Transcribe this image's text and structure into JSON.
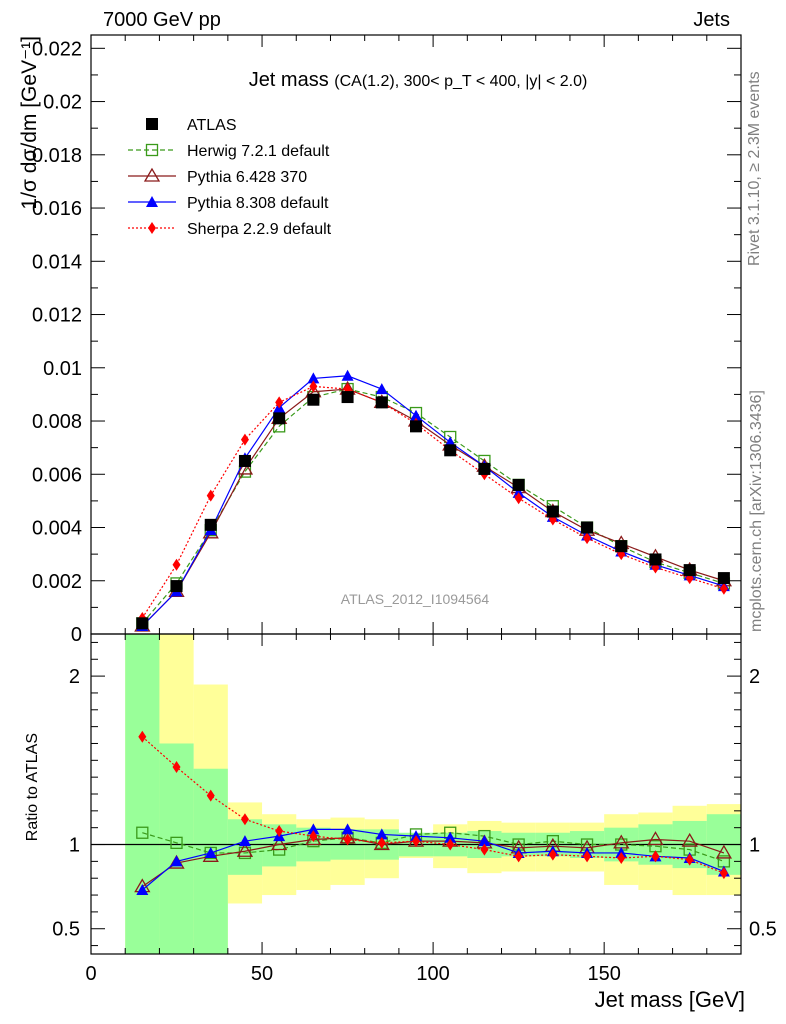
{
  "header": {
    "left": "7000 GeV pp",
    "right": "Jets"
  },
  "side_labels": {
    "rivet": "Rivet 3.1.10, ≥ 2.3M events",
    "mcplots": "mcplots.cern.ch [arXiv:1306.3436]"
  },
  "colors": {
    "ATLAS": "#000000",
    "Herwig": "#3a9a1a",
    "Pythia6": "#8b1a1a",
    "Pythia8": "#0000ff",
    "Sherpa": "#ff0000",
    "band_green": "#99ff99",
    "band_yellow": "#ffff99"
  },
  "chart_data": [
    {
      "type": "line",
      "title": "Jet mass",
      "title_detail": "(CA(1.2), 300< p_T < 400, |y| < 2.0)",
      "xlabel": "",
      "ylabel": "1/σ dσ/dm [GeV⁻¹]",
      "watermark": "ATLAS_2012_I1094564",
      "xlim": [
        0,
        190
      ],
      "ylim": [
        0,
        0.0225
      ],
      "yticks": [
        0,
        0.002,
        0.004,
        0.006,
        0.008,
        0.01,
        0.012,
        0.014,
        0.016,
        0.018,
        0.02,
        0.022
      ],
      "ytick_labels": [
        "0",
        "0.002",
        "0.004",
        "0.006",
        "0.008",
        "0.01",
        "0.012",
        "0.014",
        "0.016",
        "0.018",
        "0.02",
        "0.022"
      ],
      "legend_position": "top-left",
      "x": [
        15,
        25,
        35,
        45,
        55,
        65,
        75,
        85,
        95,
        105,
        115,
        125,
        135,
        145,
        155,
        165,
        175,
        185
      ],
      "series": [
        {
          "name": "ATLAS",
          "style": "data",
          "values": [
            0.0004,
            0.0018,
            0.0041,
            0.0065,
            0.0081,
            0.0088,
            0.0089,
            0.0087,
            0.0078,
            0.0069,
            0.0062,
            0.0056,
            0.0046,
            0.004,
            0.0033,
            0.0028,
            0.0024,
            0.0021
          ]
        },
        {
          "name": "Herwig 7.2.1 default",
          "style": "herwig",
          "values": [
            0.0004,
            0.0019,
            0.0039,
            0.0061,
            0.0078,
            0.0089,
            0.0092,
            0.0089,
            0.0083,
            0.0074,
            0.0065,
            0.0056,
            0.0048,
            0.004,
            0.0033,
            0.0027,
            0.0023,
            0.0019
          ]
        },
        {
          "name": "Pythia 6.428 370",
          "style": "pythia6",
          "values": [
            0.0003,
            0.0016,
            0.0038,
            0.0062,
            0.0081,
            0.0091,
            0.0092,
            0.0087,
            0.008,
            0.0071,
            0.0063,
            0.0055,
            0.0046,
            0.0039,
            0.0034,
            0.0029,
            0.0024,
            0.002
          ]
        },
        {
          "name": "Pythia 8.308 default",
          "style": "pythia8",
          "values": [
            0.0003,
            0.0016,
            0.0039,
            0.0066,
            0.0085,
            0.0096,
            0.0097,
            0.0092,
            0.0082,
            0.0072,
            0.0063,
            0.0053,
            0.0044,
            0.0037,
            0.0031,
            0.0026,
            0.0022,
            0.0018
          ]
        },
        {
          "name": "Sherpa 2.2.9 default",
          "style": "sherpa",
          "values": [
            0.0006,
            0.0026,
            0.0052,
            0.0073,
            0.0087,
            0.0093,
            0.0092,
            0.0087,
            0.0079,
            0.0069,
            0.006,
            0.0051,
            0.0043,
            0.0036,
            0.003,
            0.0025,
            0.0021,
            0.0017
          ]
        }
      ]
    },
    {
      "type": "line",
      "xlabel": "Jet mass [GeV]",
      "ylabel": "Ratio to ATLAS",
      "xlim": [
        0,
        190
      ],
      "ylim": [
        0.35,
        2.25
      ],
      "xticks": [
        0,
        50,
        100,
        150
      ],
      "yticks": [
        0.5,
        1,
        2
      ],
      "ytick_labels": [
        "0.5",
        "1",
        "2"
      ],
      "reference_line": 1,
      "x": [
        15,
        25,
        35,
        45,
        55,
        65,
        75,
        85,
        95,
        105,
        115,
        125,
        135,
        145,
        155,
        165,
        175,
        185
      ],
      "bin_edges": [
        10,
        20,
        30,
        40,
        50,
        60,
        70,
        80,
        90,
        100,
        110,
        120,
        130,
        140,
        150,
        160,
        170,
        180,
        190
      ],
      "bands": {
        "green": [
          [
            0.35,
            2.25
          ],
          [
            0.35,
            1.6
          ],
          [
            0.35,
            1.45
          ],
          [
            0.82,
            1.15
          ],
          [
            0.87,
            1.12
          ],
          [
            0.9,
            1.1
          ],
          [
            0.91,
            1.09
          ],
          [
            0.91,
            1.09
          ],
          [
            0.93,
            1.07
          ],
          [
            0.93,
            1.07
          ],
          [
            0.92,
            1.08
          ],
          [
            0.93,
            1.07
          ],
          [
            0.93,
            1.07
          ],
          [
            0.92,
            1.08
          ],
          [
            0.9,
            1.1
          ],
          [
            0.88,
            1.12
          ],
          [
            0.86,
            1.14
          ],
          [
            0.82,
            1.18
          ]
        ],
        "yellow": [
          [
            0.35,
            2.25
          ],
          [
            0.35,
            2.25
          ],
          [
            0.35,
            1.95
          ],
          [
            0.65,
            1.25
          ],
          [
            0.7,
            1.18
          ],
          [
            0.73,
            1.15
          ],
          [
            0.76,
            1.16
          ],
          [
            0.8,
            1.15
          ],
          [
            0.92,
            1.06
          ],
          [
            0.86,
            1.12
          ],
          [
            0.83,
            1.14
          ],
          [
            0.84,
            1.13
          ],
          [
            0.84,
            1.13
          ],
          [
            0.84,
            1.13
          ],
          [
            0.76,
            1.18
          ],
          [
            0.73,
            1.19
          ],
          [
            0.7,
            1.23
          ],
          [
            0.7,
            1.24
          ]
        ]
      },
      "series": [
        {
          "name": "Herwig 7.2.1 default",
          "style": "herwig",
          "values": [
            1.07,
            1.01,
            0.95,
            0.95,
            0.97,
            1.02,
            1.04,
            1.01,
            1.06,
            1.07,
            1.05,
            1.0,
            1.02,
            1.0,
            1.0,
            0.99,
            0.97,
            0.9
          ]
        },
        {
          "name": "Pythia 6.428 370",
          "style": "pythia6",
          "values": [
            0.75,
            0.89,
            0.93,
            0.96,
            1.0,
            1.03,
            1.04,
            1.0,
            1.02,
            1.02,
            1.01,
            0.98,
            0.99,
            0.98,
            1.01,
            1.03,
            1.02,
            0.95
          ]
        },
        {
          "name": "Pythia 8.308 default",
          "style": "pythia8",
          "values": [
            0.73,
            0.9,
            0.95,
            1.02,
            1.05,
            1.09,
            1.09,
            1.06,
            1.05,
            1.04,
            1.02,
            0.95,
            0.96,
            0.95,
            0.95,
            0.93,
            0.92,
            0.84
          ]
        },
        {
          "name": "Sherpa 2.2.9 default",
          "style": "sherpa",
          "values": [
            1.64,
            1.46,
            1.29,
            1.15,
            1.08,
            1.05,
            1.03,
            1.01,
            1.02,
            1.0,
            0.97,
            0.93,
            0.94,
            0.93,
            0.92,
            0.93,
            0.91,
            0.83
          ]
        }
      ]
    }
  ]
}
